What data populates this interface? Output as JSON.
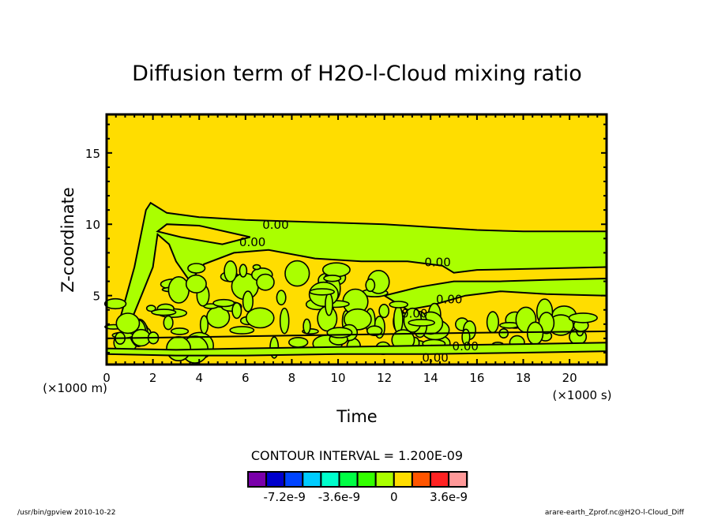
{
  "chart_data": {
    "type": "heatmap",
    "subtype": "filled-contour",
    "title": "Diffusion term of H2O-l-Cloud mixing ratio",
    "xlabel": "Time",
    "xunit_label": "(×1000 s)",
    "ylabel": "Z-coordinate",
    "yunit_label": "(×1000 m)",
    "xlim": [
      0,
      21.6
    ],
    "ylim": [
      0.17,
      17.7
    ],
    "xticks": [
      0,
      2,
      4,
      6,
      8,
      10,
      12,
      14,
      16,
      18,
      20
    ],
    "xtick_labels": [
      "0",
      "2",
      "4",
      "6",
      "8",
      "10",
      "12",
      "14",
      "16",
      "18",
      "20"
    ],
    "xminor_step": 0.4,
    "yticks": [
      5,
      10,
      15
    ],
    "ytick_labels": [
      "5",
      "10",
      "15"
    ],
    "yminor_step": 1,
    "grid": false,
    "background_level_color": "#ffdd00",
    "contour_interval_text": "CONTOUR INTERVAL = 1.200E-09",
    "contour_labels": [
      {
        "text": "0.00",
        "x": 7.3,
        "y": 10.0
      },
      {
        "text": "0.00",
        "x": 6.3,
        "y": 8.8
      },
      {
        "text": "0.00",
        "x": 14.3,
        "y": 7.4
      },
      {
        "text": "0.00",
        "x": 14.8,
        "y": 4.8
      },
      {
        "text": "0.00",
        "x": 13.3,
        "y": 3.8
      },
      {
        "text": "0.00",
        "x": 15.5,
        "y": 1.5
      },
      {
        "text": "0.00",
        "x": 14.2,
        "y": 0.7
      }
    ],
    "regions": [
      {
        "name": "upper-band",
        "level": "slightly-negative",
        "color": "#aaff00",
        "description": "Green band from ~2 to 21.6 ks between z~7 and z~11.5 (peaks at t~2ks), narrowing to z 7-9.5 later"
      },
      {
        "name": "lower-turbulent-layer",
        "level": "slightly-negative",
        "color": "#aaff00",
        "description": "Irregular green cells below z~5 throughout time"
      },
      {
        "name": "near-surface-band",
        "level": "slightly-negative",
        "color": "#aaff00",
        "description": "Thin green band near z~1-2"
      }
    ],
    "colorbar": {
      "colors": [
        "#7a00aa",
        "#0000cc",
        "#0044ff",
        "#00ccff",
        "#00ffcc",
        "#00ff44",
        "#33ff00",
        "#aaff00",
        "#ffdd00",
        "#ff5500",
        "#ff2222",
        "#ff9999"
      ],
      "tick_labels": [
        "-7.2e-9",
        "-3.6e-9",
        "0",
        "3.6e-9"
      ],
      "tick_values": [
        -7.2e-09,
        -3.6e-09,
        0,
        3.6e-09
      ],
      "interval": 1.2e-09
    }
  },
  "footer": {
    "left": "/usr/bin/gpview   2010-10-22",
    "right": "arare-earth_Zprof.nc@H2O-l-Cloud_Diff"
  }
}
